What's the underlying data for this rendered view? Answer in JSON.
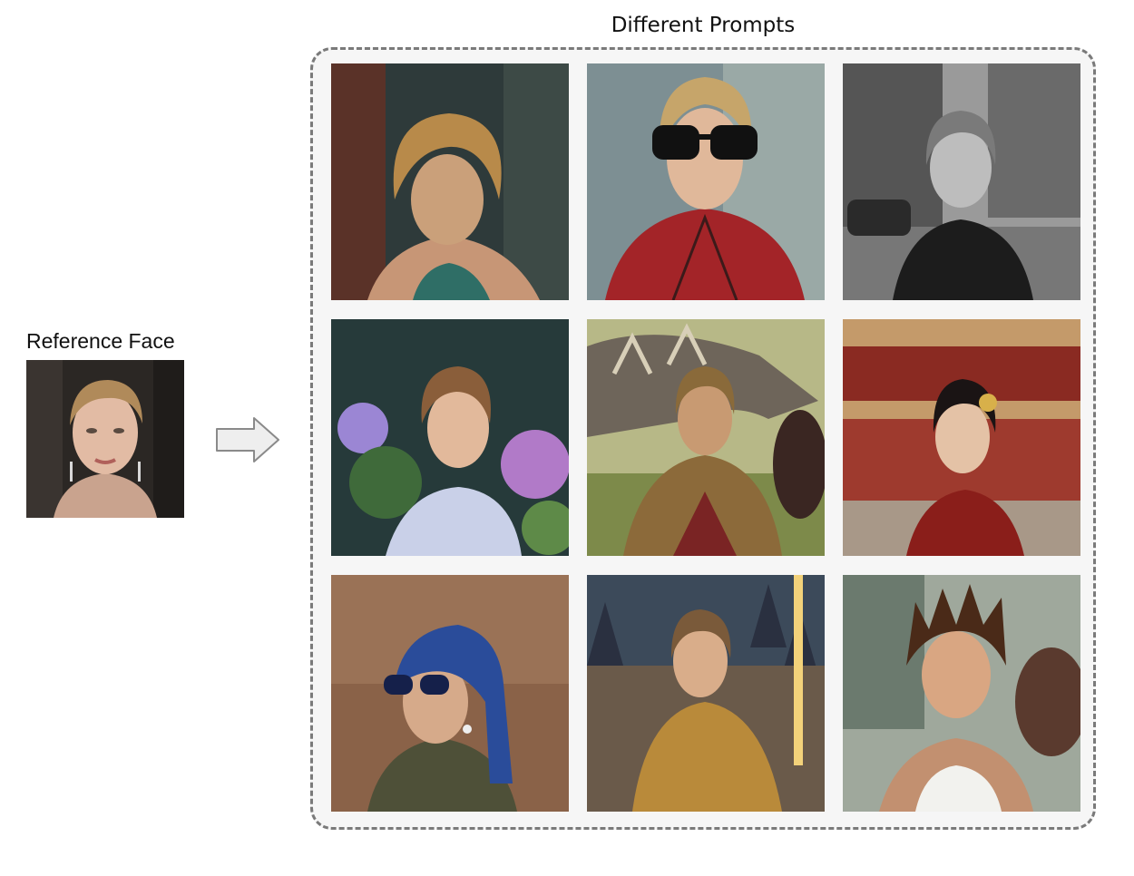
{
  "reference": {
    "title": "Reference Face"
  },
  "grid": {
    "title": "Different Prompts"
  },
  "images": [
    "reference-portrait",
    "portrait-teal-dress-against-wall",
    "portrait-spider-suit-sunglasses",
    "black-and-white-rainy-street-leather-jacket",
    "portrait-garden-flowers-lace-gown",
    "portrait-with-dragon-armor",
    "portrait-forbidden-city-traditional-dress",
    "portrait-blue-headscarf-sunglasses",
    "portrait-golden-armor-castle-sword",
    "portrait-spiky-hair-street-scene"
  ],
  "colors": {
    "panel_border": "#7a7a7a",
    "panel_fill": "#f6f6f6",
    "arrow_fill": "#eeeeee",
    "arrow_stroke": "#8a8a8a"
  }
}
